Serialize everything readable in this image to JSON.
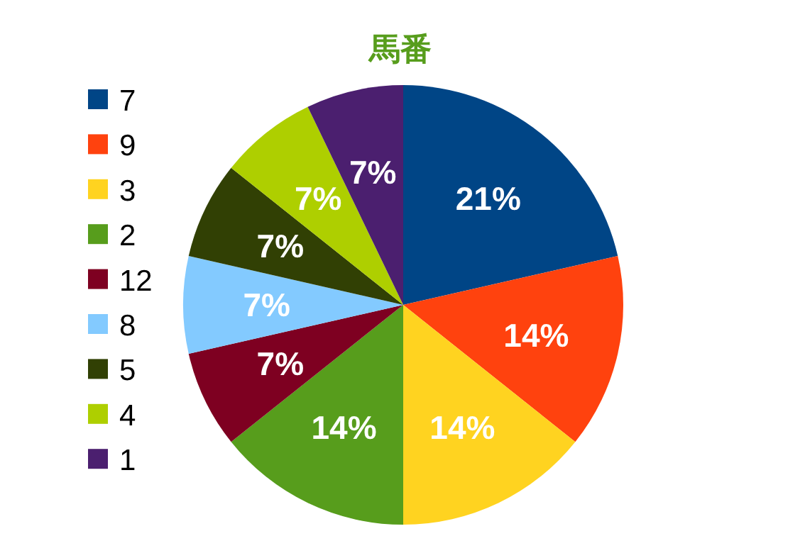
{
  "chart_data": {
    "type": "pie",
    "title": "馬番",
    "categories": [
      "7",
      "9",
      "3",
      "2",
      "12",
      "8",
      "5",
      "4",
      "1"
    ],
    "values": [
      21,
      14,
      14,
      14,
      7,
      7,
      7,
      7,
      7
    ],
    "value_labels": [
      "21%",
      "14%",
      "14%",
      "14%",
      "7%",
      "7%",
      "7%",
      "7%",
      "7%"
    ],
    "colors": [
      "#004586",
      "#ff420e",
      "#ffd320",
      "#579d1c",
      "#7e0021",
      "#83caff",
      "#314004",
      "#aecf00",
      "#4b1f6f"
    ],
    "legend": "left"
  }
}
